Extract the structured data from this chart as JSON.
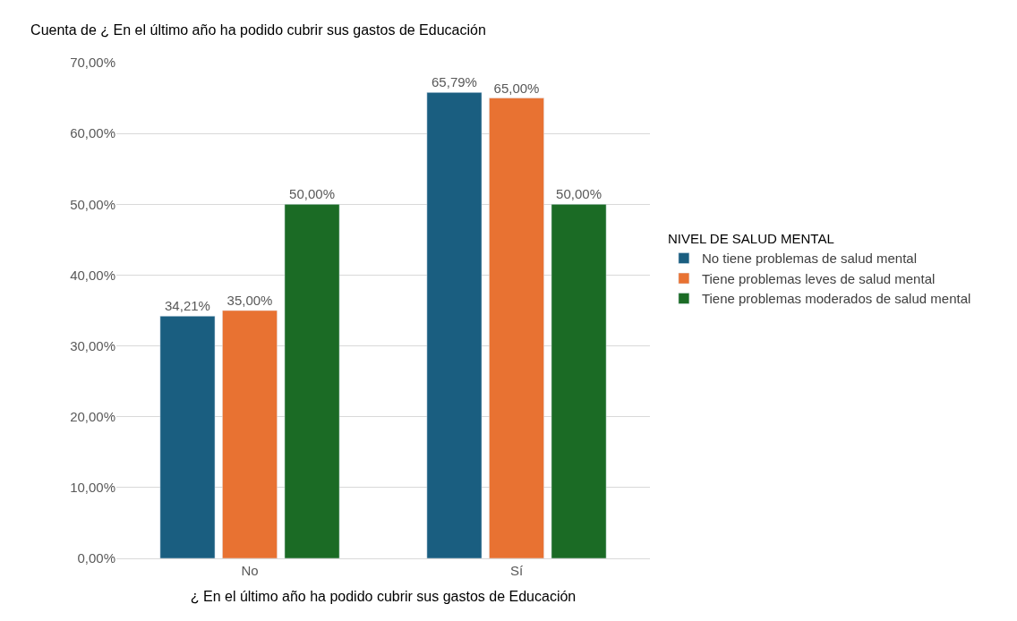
{
  "chart_data": {
    "type": "bar",
    "title": "Cuenta de ¿ En el último año ha podido cubrir sus gastos de Educación",
    "xlabel": "¿ En el último año ha podido cubrir sus gastos de Educación",
    "legend_title": "NIVEL DE SALUD MENTAL",
    "categories": [
      "No",
      "Sí"
    ],
    "series": [
      {
        "name": "No tiene problemas de salud mental",
        "color": "#1a5e80",
        "values": [
          34.21,
          65.79
        ],
        "value_labels": [
          "34,21%",
          "65,79%"
        ]
      },
      {
        "name": "Tiene problemas leves de salud mental",
        "color": "#e87232",
        "values": [
          35.0,
          65.0
        ],
        "value_labels": [
          "35,00%",
          "65,00%"
        ]
      },
      {
        "name": "Tiene problemas moderados de salud mental",
        "color": "#1b6b25",
        "values": [
          50.0,
          50.0
        ],
        "value_labels": [
          "50,00%",
          "50,00%"
        ]
      }
    ],
    "ylim": [
      0,
      70
    ],
    "yticks": [
      {
        "value": 0,
        "label": "0,00%"
      },
      {
        "value": 10,
        "label": "10,00%"
      },
      {
        "value": 20,
        "label": "20,00%"
      },
      {
        "value": 30,
        "label": "30,00%"
      },
      {
        "value": 40,
        "label": "40,00%"
      },
      {
        "value": 50,
        "label": "50,00%"
      },
      {
        "value": 60,
        "label": "60,00%"
      },
      {
        "value": 70,
        "label": "70,00%"
      }
    ],
    "grid": "y",
    "legend": "right"
  }
}
